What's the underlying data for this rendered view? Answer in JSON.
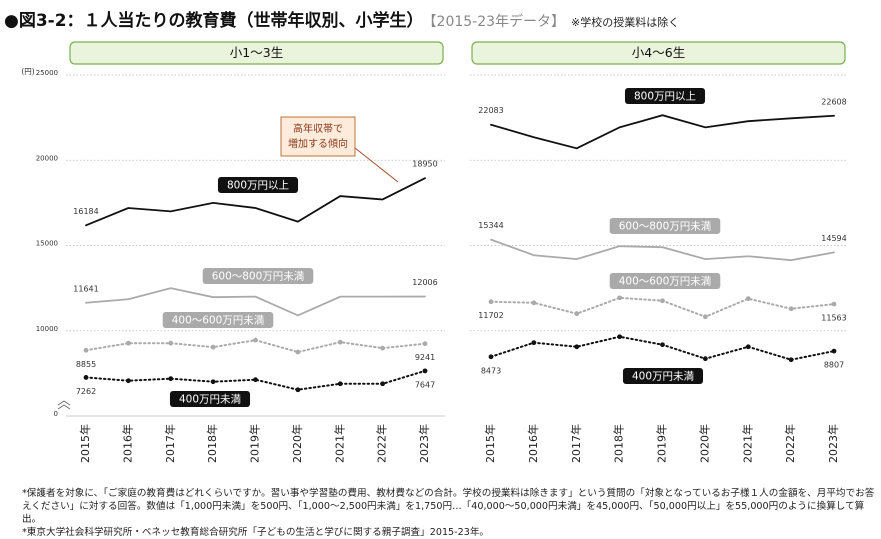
{
  "header": {
    "title": "●図3-2：１人当たりの教育費（世帯年収別、小学生）",
    "period": "【2015-23年データ】",
    "note": "※学校の授業料は除く"
  },
  "footnotes": [
    "*保護者を対象に、「ご家庭の教育費はどれくらいですか。習い事や学習塾の費用、教材費などの合計。学校の授業料は除きます」という質問の「対象となっているお子様１人の金額を、月平均でお答えください」に対する回答。数値は「1,000円未満」を500円、「1,000〜2,500円未満」を1,750円…「40,000〜50,000円未満」を45,000円、「50,000円以上」を55,000円のように換算して算出。",
    "*東京大学社会科学研究所・ベネッセ教育総合研究所「子どもの生活と学びに関する親子調査」2015-23年。"
  ],
  "chart_data": [
    {
      "type": "line",
      "title": "小1〜3生",
      "y_unit_label": "(円)",
      "categories": [
        "2015年",
        "2016年",
        "2017年",
        "2018年",
        "2019年",
        "2020年",
        "2021年",
        "2022年",
        "2023年"
      ],
      "ylim": [
        0,
        25000
      ],
      "axis_break": [
        0,
        5000
      ],
      "yticks": [
        0,
        10000,
        15000,
        20000,
        25000
      ],
      "tick_labels": true,
      "grid": true,
      "label_ends": true,
      "annotation": [
        "高年収帯で",
        "増加する傾向"
      ],
      "series": [
        {
          "name": "800万円以上",
          "color": "#111111",
          "dash": "solid",
          "markers": false,
          "values": [
            16184,
            17200,
            17000,
            17500,
            17200,
            16400,
            17900,
            17700,
            18950
          ]
        },
        {
          "name": "600〜800万円未満",
          "color": "#aaaaaa",
          "dash": "solid",
          "markers": false,
          "values": [
            11641,
            11850,
            12500,
            11970,
            12000,
            10900,
            12000,
            12000,
            12006
          ]
        },
        {
          "name": "400〜600万円未満",
          "color": "#aaaaaa",
          "dash": "dotted",
          "markers": true,
          "values": [
            8855,
            9270,
            9270,
            9040,
            9450,
            8750,
            9330,
            8980,
            9241
          ]
        },
        {
          "name": "400万円未満",
          "color": "#111111",
          "dash": "dotted",
          "markers": true,
          "values": [
            7262,
            7070,
            7190,
            7010,
            7130,
            6540,
            6890,
            6890,
            7647
          ]
        }
      ]
    },
    {
      "type": "line",
      "title": "小4〜6生",
      "categories": [
        "2015年",
        "2016年",
        "2017年",
        "2018年",
        "2019年",
        "2020年",
        "2021年",
        "2022年",
        "2023年"
      ],
      "ylim": [
        5000,
        25000
      ],
      "yticks": [
        10000,
        15000,
        20000,
        25000
      ],
      "tick_labels": false,
      "grid": true,
      "label_ends": true,
      "series": [
        {
          "name": "800万円以上",
          "color": "#111111",
          "dash": "solid",
          "markers": false,
          "values": [
            22083,
            21350,
            20700,
            21930,
            22640,
            21930,
            22290,
            22460,
            22608
          ]
        },
        {
          "name": "600〜800万円未満",
          "color": "#aaaaaa",
          "dash": "solid",
          "markers": false,
          "values": [
            15344,
            14430,
            14200,
            14960,
            14900,
            14200,
            14370,
            14140,
            14594
          ]
        },
        {
          "name": "400〜600万円未満",
          "color": "#aaaaaa",
          "dash": "dotted",
          "markers": true,
          "values": [
            11702,
            11640,
            11000,
            11930,
            11760,
            10820,
            11880,
            11290,
            11563
          ]
        },
        {
          "name": "400万円未満",
          "color": "#111111",
          "dash": "dotted",
          "markers": true,
          "values": [
            8473,
            9300,
            9060,
            9650,
            9180,
            8360,
            9060,
            8300,
            8807
          ]
        }
      ]
    }
  ]
}
